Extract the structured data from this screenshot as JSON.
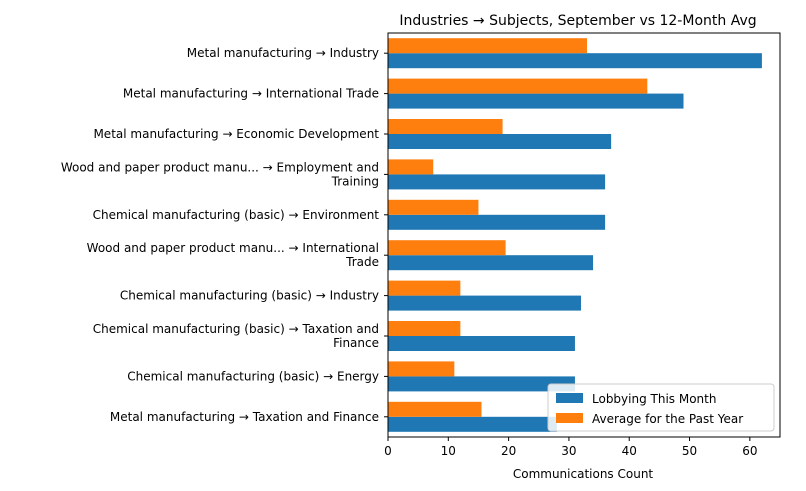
{
  "chart_data": {
    "type": "bar",
    "orientation": "horizontal",
    "title": "Industries → Subjects, September vs 12-Month Avg",
    "xlabel": "Communications Count",
    "ylabel": "",
    "xlim": [
      0,
      65
    ],
    "xticks": [
      0,
      10,
      20,
      30,
      40,
      50,
      60
    ],
    "grid": false,
    "legend_position": "lower right",
    "categories": [
      [
        "Metal manufacturing → Industry"
      ],
      [
        "Metal manufacturing → International Trade"
      ],
      [
        "Metal manufacturing → Economic Development"
      ],
      [
        "Wood and paper product manu... → Employment and",
        "Training"
      ],
      [
        "Chemical manufacturing (basic) → Environment"
      ],
      [
        "Wood and paper product manu... → International",
        "Trade"
      ],
      [
        "Chemical manufacturing (basic) → Industry"
      ],
      [
        "Chemical manufacturing (basic) → Taxation and",
        "Finance"
      ],
      [
        "Chemical manufacturing (basic) → Energy"
      ],
      [
        "Metal manufacturing → Taxation and Finance"
      ]
    ],
    "series": [
      {
        "name": "Lobbying This Month",
        "color": "#1f77b4",
        "values": [
          62,
          49,
          37,
          36,
          36,
          34,
          32,
          31,
          31,
          28
        ]
      },
      {
        "name": "Average for the Past Year",
        "color": "#ff7f0e",
        "values": [
          33,
          43,
          19,
          7.5,
          15,
          19.5,
          12,
          12,
          11,
          15.5
        ]
      }
    ]
  }
}
